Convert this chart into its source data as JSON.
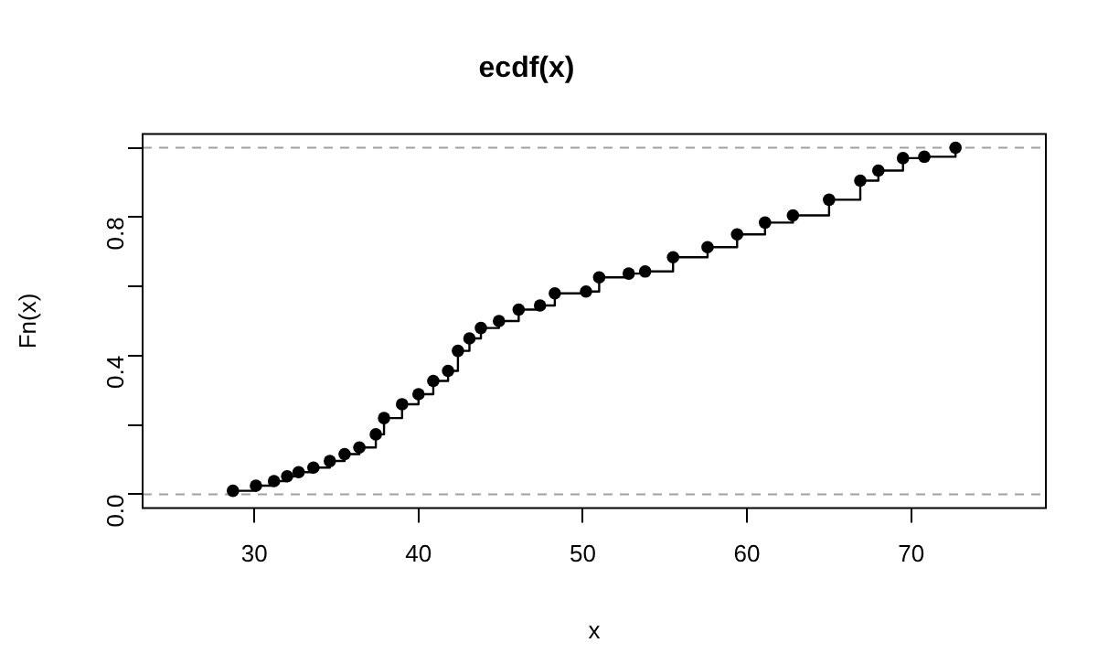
{
  "chart_data": {
    "type": "step",
    "title": "ecdf(x)",
    "xlabel": "x",
    "ylabel": "Fn(x)",
    "x": [
      28.7,
      30.1,
      31.2,
      32.0,
      32.7,
      33.6,
      34.6,
      35.5,
      36.4,
      37.4,
      37.9,
      39.0,
      40.0,
      40.9,
      41.8,
      42.4,
      43.1,
      43.8,
      44.9,
      46.1,
      47.4,
      48.3,
      50.2,
      51.0,
      52.8,
      53.8,
      55.5,
      57.6,
      59.4,
      61.1,
      62.8,
      65.0,
      66.9,
      68.0,
      69.5,
      70.8,
      72.7
    ],
    "series": [
      {
        "color": "#000000",
        "values": [
          0.01,
          0.025,
          0.038,
          0.052,
          0.064,
          0.077,
          0.096,
          0.116,
          0.135,
          0.173,
          0.22,
          0.26,
          0.289,
          0.327,
          0.356,
          0.414,
          0.45,
          0.48,
          0.5,
          0.533,
          0.545,
          0.58,
          0.585,
          0.626,
          0.637,
          0.643,
          0.684,
          0.713,
          0.75,
          0.784,
          0.805,
          0.85,
          0.905,
          0.934,
          0.97,
          0.974,
          1.0
        ]
      }
    ],
    "xlim": [
      23.2,
      78.2
    ],
    "xticks": [
      30,
      40,
      50,
      60,
      70
    ],
    "ylim": [
      -0.04,
      1.04
    ],
    "yticks": [
      {
        "value": 0,
        "label": "0.0"
      },
      {
        "value": 0.2,
        "label": null
      },
      0.4,
      {
        "value": 0.6,
        "label": null
      },
      0.8,
      {
        "value": 1,
        "label": null
      }
    ],
    "ref_lines": [
      {
        "axis": "y",
        "value": 0,
        "label": null,
        "color": "#a0a0a0",
        "line_style": "dashed"
      },
      {
        "axis": "y",
        "value": 1,
        "label": null,
        "color": "#a0a0a0",
        "line_style": "dashed"
      }
    ],
    "marker": "circle",
    "line_style": "solid",
    "grid": false,
    "legend": false
  }
}
